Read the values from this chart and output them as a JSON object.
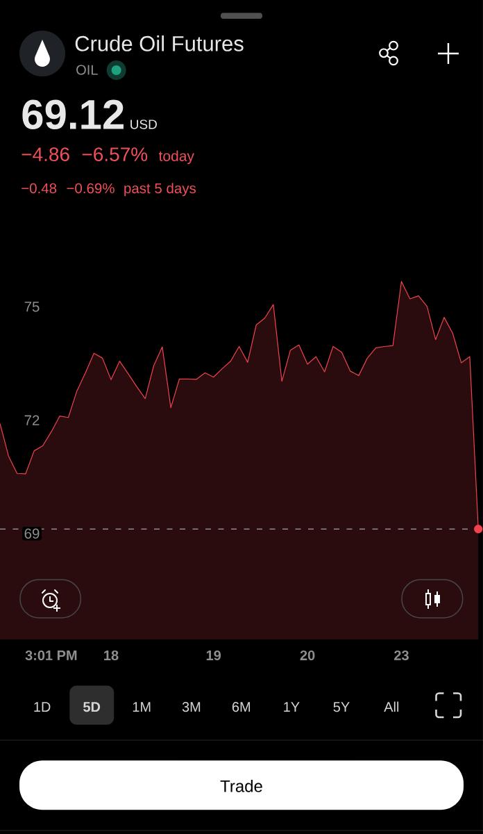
{
  "chart_data": {
    "type": "area",
    "title": "Crude Oil Futures",
    "subtitle": "OIL",
    "categories": [
      null,
      null,
      null,
      null,
      null,
      null,
      "3:01 PM",
      null,
      null,
      null,
      null,
      null,
      null,
      "18",
      null,
      null,
      null,
      null,
      null,
      null,
      null,
      null,
      null,
      null,
      null,
      "19",
      null,
      null,
      null,
      null,
      null,
      null,
      null,
      null,
      null,
      null,
      "20",
      null,
      null,
      null,
      null,
      null,
      null,
      null,
      null,
      null,
      null,
      "23",
      null,
      null,
      null,
      null,
      null,
      null,
      null,
      null,
      null
    ],
    "series": [
      {
        "color": "#f0434f",
        "values": [
          71.91,
          71.05,
          70.59,
          70.58,
          71.19,
          71.32,
          71.69,
          72.11,
          72.07,
          72.77,
          73.25,
          73.77,
          73.64,
          73.07,
          73.56,
          73.23,
          72.89,
          72.57,
          73.44,
          73.94,
          72.33,
          73.09,
          73.09,
          73.08,
          73.25,
          73.14,
          73.36,
          73.56,
          73.95,
          73.53,
          74.52,
          74.7,
          75.06,
          73.03,
          73.85,
          73.99,
          73.48,
          73.68,
          73.28,
          73.95,
          73.8,
          73.3,
          73.18,
          73.64,
          73.91,
          73.95,
          73.97,
          75.67,
          75.21,
          75.29,
          75.01,
          74.13,
          74.72,
          74.3,
          73.52,
          73.68,
          69.12
        ]
      },
      {
        "type": "scatter",
        "marker": "circle",
        "color": "#f0434f",
        "values": [
          null,
          null,
          null,
          null,
          null,
          null,
          null,
          null,
          null,
          null,
          null,
          null,
          null,
          null,
          null,
          null,
          null,
          null,
          null,
          null,
          null,
          null,
          null,
          null,
          null,
          null,
          null,
          null,
          null,
          null,
          null,
          null,
          null,
          null,
          null,
          null,
          null,
          null,
          null,
          null,
          null,
          null,
          null,
          null,
          null,
          null,
          null,
          null,
          null,
          null,
          null,
          null,
          null,
          null,
          null,
          null,
          69.12
        ]
      }
    ],
    "ylim": [
      66.2,
      77.6
    ],
    "yticks": [
      69,
      72,
      75
    ],
    "ref_lines": [
      {
        "axis": "y",
        "value": 69.12,
        "color": "#8c8c8c",
        "line_style": "dashed"
      }
    ],
    "line_style": "solid",
    "annotations": [
      "69.12",
      "USD",
      "−4.86",
      "−6.57%",
      "today",
      "−0.48",
      "−0.69%",
      "past 5 days",
      "1D",
      "5D",
      "1M",
      "3M",
      "6M",
      "1Y",
      "5Y",
      "All",
      "Trade"
    ]
  }
}
